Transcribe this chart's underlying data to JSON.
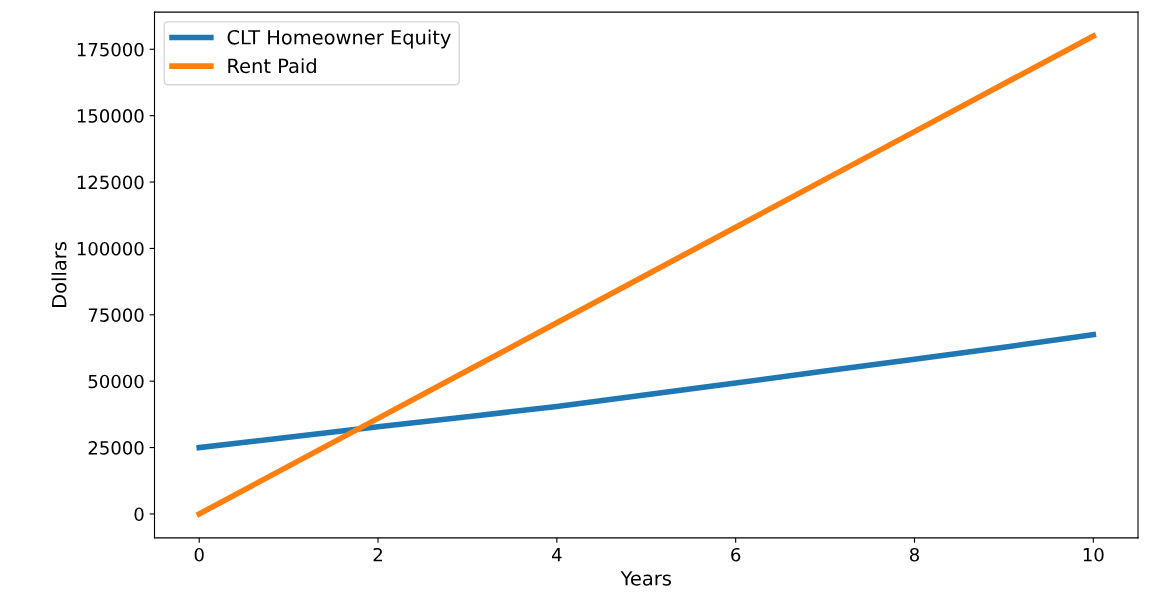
{
  "chart_data": {
    "type": "line",
    "xlabel": "Years",
    "ylabel": "Dollars",
    "x": [
      0,
      1,
      2,
      3,
      4,
      5,
      6,
      7,
      8,
      9,
      10
    ],
    "series": [
      {
        "name": "CLT Homeowner Equity",
        "color": "#1f77b4",
        "values": [
          25000,
          28900,
          32800,
          36600,
          40500,
          44900,
          49300,
          53800,
          58300,
          62800,
          67500
        ]
      },
      {
        "name": "Rent Paid",
        "color": "#ff7f0e",
        "values": [
          0,
          18000,
          36000,
          54000,
          72000,
          90000,
          108000,
          126000,
          144000,
          162000,
          180000
        ]
      }
    ],
    "xlim": [
      -0.5,
      10.5
    ],
    "xticks": [
      0,
      2,
      4,
      6,
      8,
      10
    ],
    "ylim": [
      -9000,
      189000
    ],
    "yticks": [
      0,
      25000,
      50000,
      75000,
      100000,
      125000,
      150000,
      175000
    ],
    "legend": "top left",
    "grid": false,
    "marker": "none",
    "line_style": "solid"
  }
}
